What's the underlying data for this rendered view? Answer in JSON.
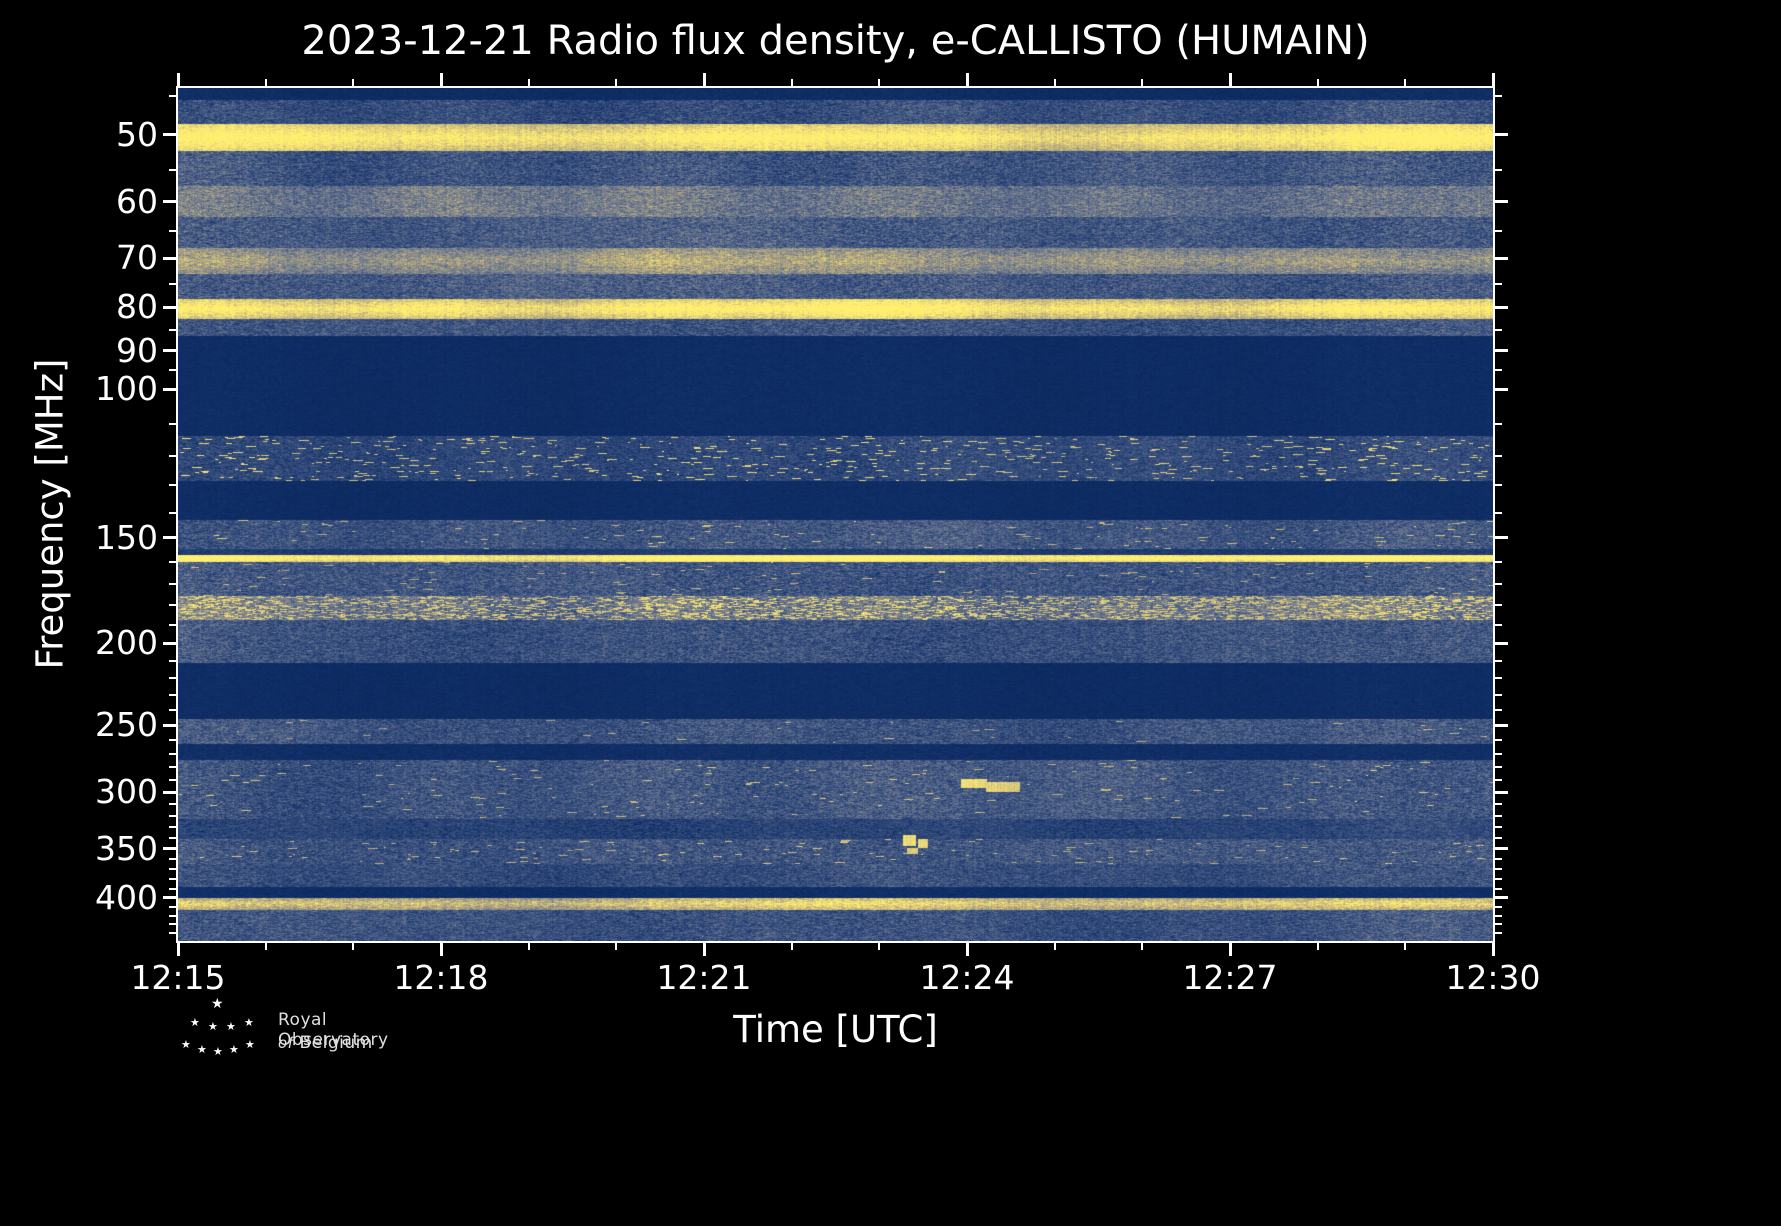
{
  "title": "2023-12-21 Radio flux density, e-CALLISTO (HUMAIN)",
  "footer": {
    "logo_text_line1": "Royal Observatory",
    "logo_text_line2_italic": "of",
    "logo_text_line2": "Belgium"
  },
  "chart_data": {
    "type": "heatmap",
    "subtype": "solar-radio-spectrogram",
    "instrument": "e-CALLISTO",
    "station": "HUMAIN",
    "date": "2023-12-21",
    "x": {
      "label": "Time [UTC]",
      "start": "12:15",
      "end": "12:30",
      "duration_minutes": 15,
      "major_ticks": [
        "12:15",
        "12:18",
        "12:21",
        "12:24",
        "12:27",
        "12:30"
      ],
      "major_tick_every_minutes": 3,
      "minor_tick_every_minutes": 1
    },
    "y": {
      "label": "Frequency [MHz]",
      "scale": "log",
      "min": 44,
      "max": 450,
      "direction": "low-frequency-at-top",
      "major_ticks": [
        50,
        60,
        70,
        80,
        90,
        100,
        150,
        200,
        250,
        300,
        350,
        400
      ],
      "minor_ticks": [
        45,
        55,
        65,
        75,
        85,
        95,
        110,
        120,
        130,
        140,
        160,
        170,
        180,
        190,
        210,
        220,
        230,
        240,
        260,
        270,
        280,
        290,
        310,
        320,
        330,
        340,
        360,
        370,
        380,
        390,
        410,
        420,
        430,
        440
      ]
    },
    "colormap": {
      "name": "dark-blue-to-yellow",
      "stops": [
        [
          0.0,
          "#071c47"
        ],
        [
          0.1,
          "#0f2e66"
        ],
        [
          0.32,
          "#3b5280"
        ],
        [
          0.52,
          "#737d90"
        ],
        [
          0.72,
          "#b9ab7e"
        ],
        [
          0.88,
          "#e8d67a"
        ],
        [
          1.0,
          "#ffef70"
        ]
      ]
    },
    "bands": [
      {
        "f0": 44.0,
        "f1": 45.5,
        "base": 0.1,
        "noise": 0.04,
        "desc": "dark strip at top edge"
      },
      {
        "f0": 45.5,
        "f1": 48.6,
        "base": 0.3,
        "noise": 0.2,
        "cv": 0.06,
        "desc": "noisy background"
      },
      {
        "f0": 48.6,
        "f1": 52.2,
        "base": 0.82,
        "noise": 0.16,
        "core": 50.4,
        "coreAmp": 0.2,
        "cv": 0.08,
        "desc": "bright persistent RFI band ~50 MHz"
      },
      {
        "f0": 52.2,
        "f1": 57.5,
        "base": 0.34,
        "noise": 0.22,
        "cv": 0.06
      },
      {
        "f0": 57.5,
        "f1": 62.5,
        "base": 0.5,
        "noise": 0.22,
        "cv": 0.08,
        "desc": "lighter band ~60 MHz"
      },
      {
        "f0": 62.5,
        "f1": 68.0,
        "base": 0.36,
        "noise": 0.22,
        "cv": 0.06
      },
      {
        "f0": 68.0,
        "f1": 73.0,
        "base": 0.55,
        "noise": 0.2,
        "core": 70.5,
        "coreAmp": 0.12,
        "cv": 0.08,
        "desc": "light tan band ~70 MHz"
      },
      {
        "f0": 73.0,
        "f1": 78.3,
        "base": 0.36,
        "noise": 0.22,
        "cv": 0.06
      },
      {
        "f0": 78.3,
        "f1": 82.5,
        "base": 0.8,
        "noise": 0.18,
        "core": 80.3,
        "coreAmp": 0.22,
        "cv": 0.08,
        "desc": "bright persistent RFI band ~80 MHz"
      },
      {
        "f0": 82.5,
        "f1": 86.5,
        "base": 0.32,
        "noise": 0.2,
        "cv": 0.05
      },
      {
        "f0": 86.5,
        "f1": 113.5,
        "base": 0.1,
        "noise": 0.035,
        "desc": "quiet dark band (FM broadcast gap ~87-113 MHz)"
      },
      {
        "f0": 113.5,
        "f1": 128.5,
        "base": 0.27,
        "noise": 0.17,
        "sp": 0.01,
        "sv": 0.92,
        "cv": 0.05,
        "desc": "band with intermittent bright bursts (airband)"
      },
      {
        "f0": 128.5,
        "f1": 143.0,
        "base": 0.1,
        "noise": 0.035,
        "desc": "quiet dark band"
      },
      {
        "f0": 143.0,
        "f1": 154.5,
        "base": 0.34,
        "noise": 0.2,
        "sp": 0.003,
        "sv": 0.85,
        "cv": 0.05
      },
      {
        "f0": 154.5,
        "f1": 157.0,
        "base": 0.18,
        "noise": 0.1
      },
      {
        "f0": 157.0,
        "f1": 160.0,
        "base": 0.92,
        "noise": 0.14,
        "core": 158.4,
        "coreAmp": 0.15,
        "cv": 0.06,
        "desc": "thin continuous bright line ~158 MHz"
      },
      {
        "f0": 160.0,
        "f1": 175.5,
        "base": 0.34,
        "noise": 0.22,
        "sp": 0.002,
        "sv": 0.8,
        "cv": 0.06
      },
      {
        "f0": 175.5,
        "f1": 187.5,
        "base": 0.5,
        "noise": 0.26,
        "sp": 0.06,
        "sv": 0.92,
        "cv": 0.08,
        "desc": "dense bright speckled band ~180 MHz"
      },
      {
        "f0": 187.5,
        "f1": 211.0,
        "base": 0.32,
        "noise": 0.21,
        "cv": 0.06
      },
      {
        "f0": 211.0,
        "f1": 246.0,
        "base": 0.1,
        "noise": 0.035,
        "desc": "quiet dark band"
      },
      {
        "f0": 246.0,
        "f1": 263.0,
        "base": 0.33,
        "noise": 0.2,
        "sp": 0.001,
        "sv": 0.8,
        "cv": 0.05,
        "desc": "thin noisy band ~250 MHz"
      },
      {
        "f0": 263.0,
        "f1": 275.0,
        "base": 0.11,
        "noise": 0.05
      },
      {
        "f0": 275.0,
        "f1": 323.0,
        "base": 0.34,
        "noise": 0.21,
        "sp": 0.002,
        "sv": 0.85,
        "cv": 0.06,
        "desc": "noisy band with occasional bright spots ~280-320 MHz"
      },
      {
        "f0": 323.0,
        "f1": 341.0,
        "base": 0.24,
        "noise": 0.16,
        "cv": 0.05
      },
      {
        "f0": 341.0,
        "f1": 365.0,
        "base": 0.34,
        "noise": 0.21,
        "sp": 0.003,
        "sv": 0.85,
        "cv": 0.06
      },
      {
        "f0": 365.0,
        "f1": 388.0,
        "base": 0.3,
        "noise": 0.19,
        "cv": 0.05
      },
      {
        "f0": 388.0,
        "f1": 400.0,
        "base": 0.11,
        "noise": 0.05,
        "desc": "quiet dark band"
      },
      {
        "f0": 400.0,
        "f1": 414.0,
        "base": 0.68,
        "noise": 0.2,
        "core": 406.5,
        "coreAmp": 0.18,
        "cv": 0.08,
        "desc": "bright band ~406 MHz"
      },
      {
        "f0": 414.0,
        "f1": 450.0,
        "base": 0.32,
        "noise": 0.2,
        "cv": 0.05
      }
    ],
    "blobs": [
      {
        "t": 0.605,
        "f": 293,
        "tw": 0.01,
        "fw": 3.5,
        "v": 0.97,
        "desc": "bright burst near 12:24 ~293 MHz"
      },
      {
        "t": 0.627,
        "f": 296,
        "tw": 0.013,
        "fw": 4.0,
        "v": 0.95,
        "desc": "bright burst near 12:24 ~296 MHz"
      },
      {
        "t": 0.556,
        "f": 342,
        "tw": 0.005,
        "fw": 5.0,
        "v": 0.93,
        "desc": "bright spot near 12:23 ~342 MHz"
      },
      {
        "t": 0.566,
        "f": 345,
        "tw": 0.004,
        "fw": 4.0,
        "v": 0.9,
        "desc": "bright spot near 12:23 ~345 MHz"
      },
      {
        "t": 0.558,
        "f": 352,
        "tw": 0.004,
        "fw": 3.0,
        "v": 0.85,
        "desc": "bright spot near 12:23 ~352 MHz"
      }
    ]
  }
}
